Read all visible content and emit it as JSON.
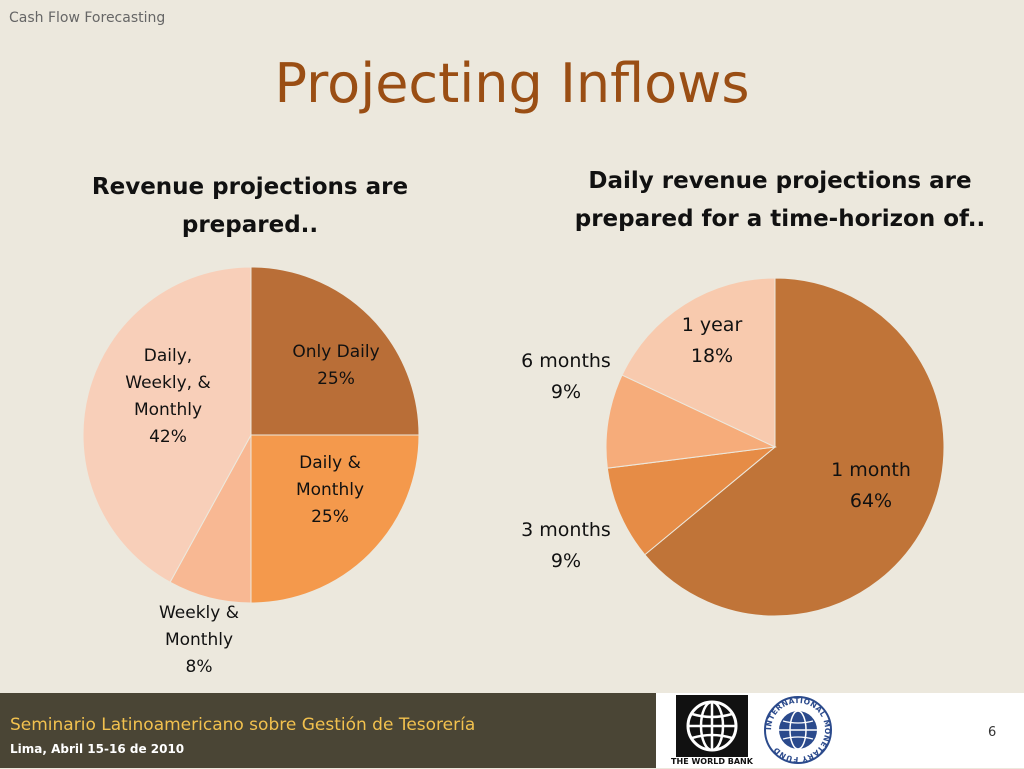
{
  "header": {
    "label": "Cash Flow Forecasting"
  },
  "title": "Projecting Inflows",
  "colors": {
    "background": "#ECE8DD",
    "title": "#9A4E14",
    "footer_band": "#4A4535",
    "footer_title": "#F2C14E"
  },
  "chart_data": [
    {
      "type": "pie",
      "title": "Revenue projections are prepared..",
      "slices": [
        {
          "label": "Only Daily",
          "label_lines": [
            "Only Daily",
            "25%"
          ],
          "value": 25,
          "color": "#B96E37"
        },
        {
          "label": "Daily & Monthly",
          "label_lines": [
            "Daily &",
            "Monthly",
            "25%"
          ],
          "value": 25,
          "color": "#F4994C"
        },
        {
          "label": "Weekly & Monthly",
          "label_lines": [
            "Weekly &",
            "Monthly",
            "8%"
          ],
          "value": 8,
          "color": "#F8B893"
        },
        {
          "label": "Daily, Weekly, & Monthly",
          "label_lines": [
            "Daily,",
            "Weekly, &",
            "Monthly",
            "42%"
          ],
          "value": 42,
          "color": "#F8CFB9"
        }
      ]
    },
    {
      "type": "pie",
      "title": "Daily revenue projections are prepared for a time-horizon of..",
      "slices": [
        {
          "label": "1 month",
          "label_lines": [
            "1 month",
            "64%"
          ],
          "value": 64,
          "color": "#C07438"
        },
        {
          "label": "3 months",
          "label_lines": [
            "3 months",
            "9%"
          ],
          "value": 9,
          "color": "#E68C46"
        },
        {
          "label": "6 months",
          "label_lines": [
            "6 months",
            "9%"
          ],
          "value": 9,
          "color": "#F6AC7A"
        },
        {
          "label": "1 year",
          "label_lines": [
            "1 year",
            "18%"
          ],
          "value": 18,
          "color": "#F8CAAE"
        }
      ]
    }
  ],
  "footer": {
    "title": "Seminario Latinoamericano sobre Gestión de Tesorería",
    "subtitle": "Lima, Abril 15-16 de 2010",
    "page_number": "6",
    "wb_caption": "THE WORLD BANK",
    "imf_text": "INTERNATIONAL MONETARY FUND"
  }
}
